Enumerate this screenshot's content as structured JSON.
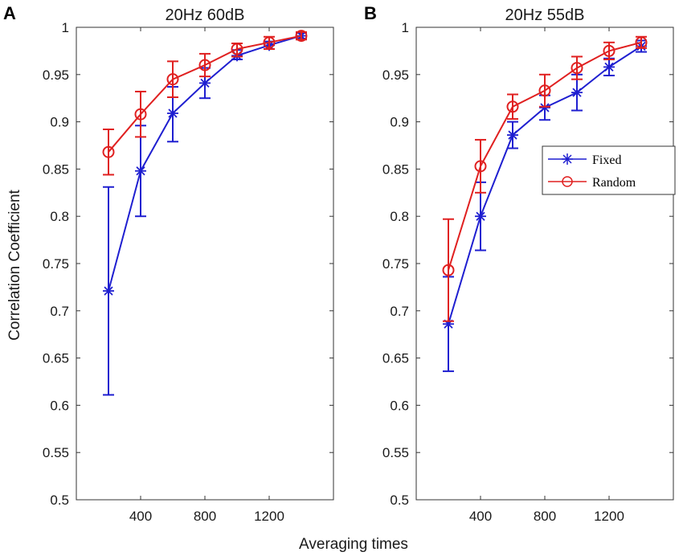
{
  "shared": {
    "xlabel": "Averaging times",
    "ylabel": "Correlation Coefficient"
  },
  "colors": {
    "fixed": "#1f1fd0",
    "random": "#e02020"
  },
  "legend": {
    "fixed_label": "Fixed",
    "random_label": "Random",
    "position": "upper-right of panel B"
  },
  "chart_data": [
    {
      "type": "line",
      "panel_label": "A",
      "title": "20Hz 60dB",
      "xlabel": "Averaging times",
      "ylabel": "Correlation Coefficient",
      "xlim": [
        0,
        1600
      ],
      "ylim": [
        0.5,
        1
      ],
      "xticks": [
        400,
        800,
        1200
      ],
      "yticks": [
        0.5,
        0.55,
        0.6,
        0.65,
        0.7,
        0.75,
        0.8,
        0.85,
        0.9,
        0.95,
        1
      ],
      "ytick_labels": [
        "0.5",
        "0.55",
        "0.6",
        "0.65",
        "0.7",
        "0.75",
        "0.8",
        "0.85",
        "0.9",
        "0.95",
        "1"
      ],
      "x": [
        200,
        400,
        600,
        800,
        1000,
        1200,
        1400
      ],
      "series": [
        {
          "name": "Fixed",
          "color": "#1f1fd0",
          "marker": "star",
          "values": [
            0.721,
            0.848,
            0.909,
            0.941,
            0.97,
            0.981,
            0.991
          ],
          "err_low": [
            0.611,
            0.8,
            0.879,
            0.925,
            0.966,
            0.977,
            0.988
          ],
          "err_high": [
            0.831,
            0.896,
            0.937,
            0.957,
            0.976,
            0.985,
            0.994
          ]
        },
        {
          "name": "Random",
          "color": "#e02020",
          "marker": "circle",
          "values": [
            0.868,
            0.908,
            0.945,
            0.96,
            0.977,
            0.984,
            0.991
          ],
          "err_low": [
            0.844,
            0.884,
            0.926,
            0.948,
            0.969,
            0.977,
            0.987
          ],
          "err_high": [
            0.892,
            0.932,
            0.964,
            0.972,
            0.983,
            0.99,
            0.995
          ]
        }
      ]
    },
    {
      "type": "line",
      "panel_label": "B",
      "title": "20Hz 55dB",
      "xlabel": "Averaging times",
      "ylabel": "",
      "xlim": [
        0,
        1600
      ],
      "ylim": [
        0.5,
        1
      ],
      "xticks": [
        400,
        800,
        1200
      ],
      "yticks": [
        0.5,
        0.55,
        0.6,
        0.65,
        0.7,
        0.75,
        0.8,
        0.85,
        0.9,
        0.95,
        1
      ],
      "ytick_labels": [
        "0.5",
        "0.55",
        "0.6",
        "0.65",
        "0.7",
        "0.75",
        "0.8",
        "0.85",
        "0.9",
        "0.95",
        "1"
      ],
      "x": [
        200,
        400,
        600,
        800,
        1000,
        1200,
        1400
      ],
      "series": [
        {
          "name": "Fixed",
          "color": "#1f1fd0",
          "marker": "star",
          "values": [
            0.686,
            0.8,
            0.886,
            0.915,
            0.931,
            0.958,
            0.98
          ],
          "err_low": [
            0.636,
            0.764,
            0.872,
            0.902,
            0.912,
            0.949,
            0.974
          ],
          "err_high": [
            0.736,
            0.836,
            0.9,
            0.928,
            0.95,
            0.967,
            0.986
          ]
        },
        {
          "name": "Random",
          "color": "#e02020",
          "marker": "circle",
          "values": [
            0.743,
            0.853,
            0.916,
            0.933,
            0.957,
            0.975,
            0.984
          ],
          "err_low": [
            0.689,
            0.825,
            0.903,
            0.916,
            0.945,
            0.966,
            0.978
          ],
          "err_high": [
            0.797,
            0.881,
            0.929,
            0.95,
            0.969,
            0.984,
            0.99
          ]
        }
      ]
    }
  ]
}
